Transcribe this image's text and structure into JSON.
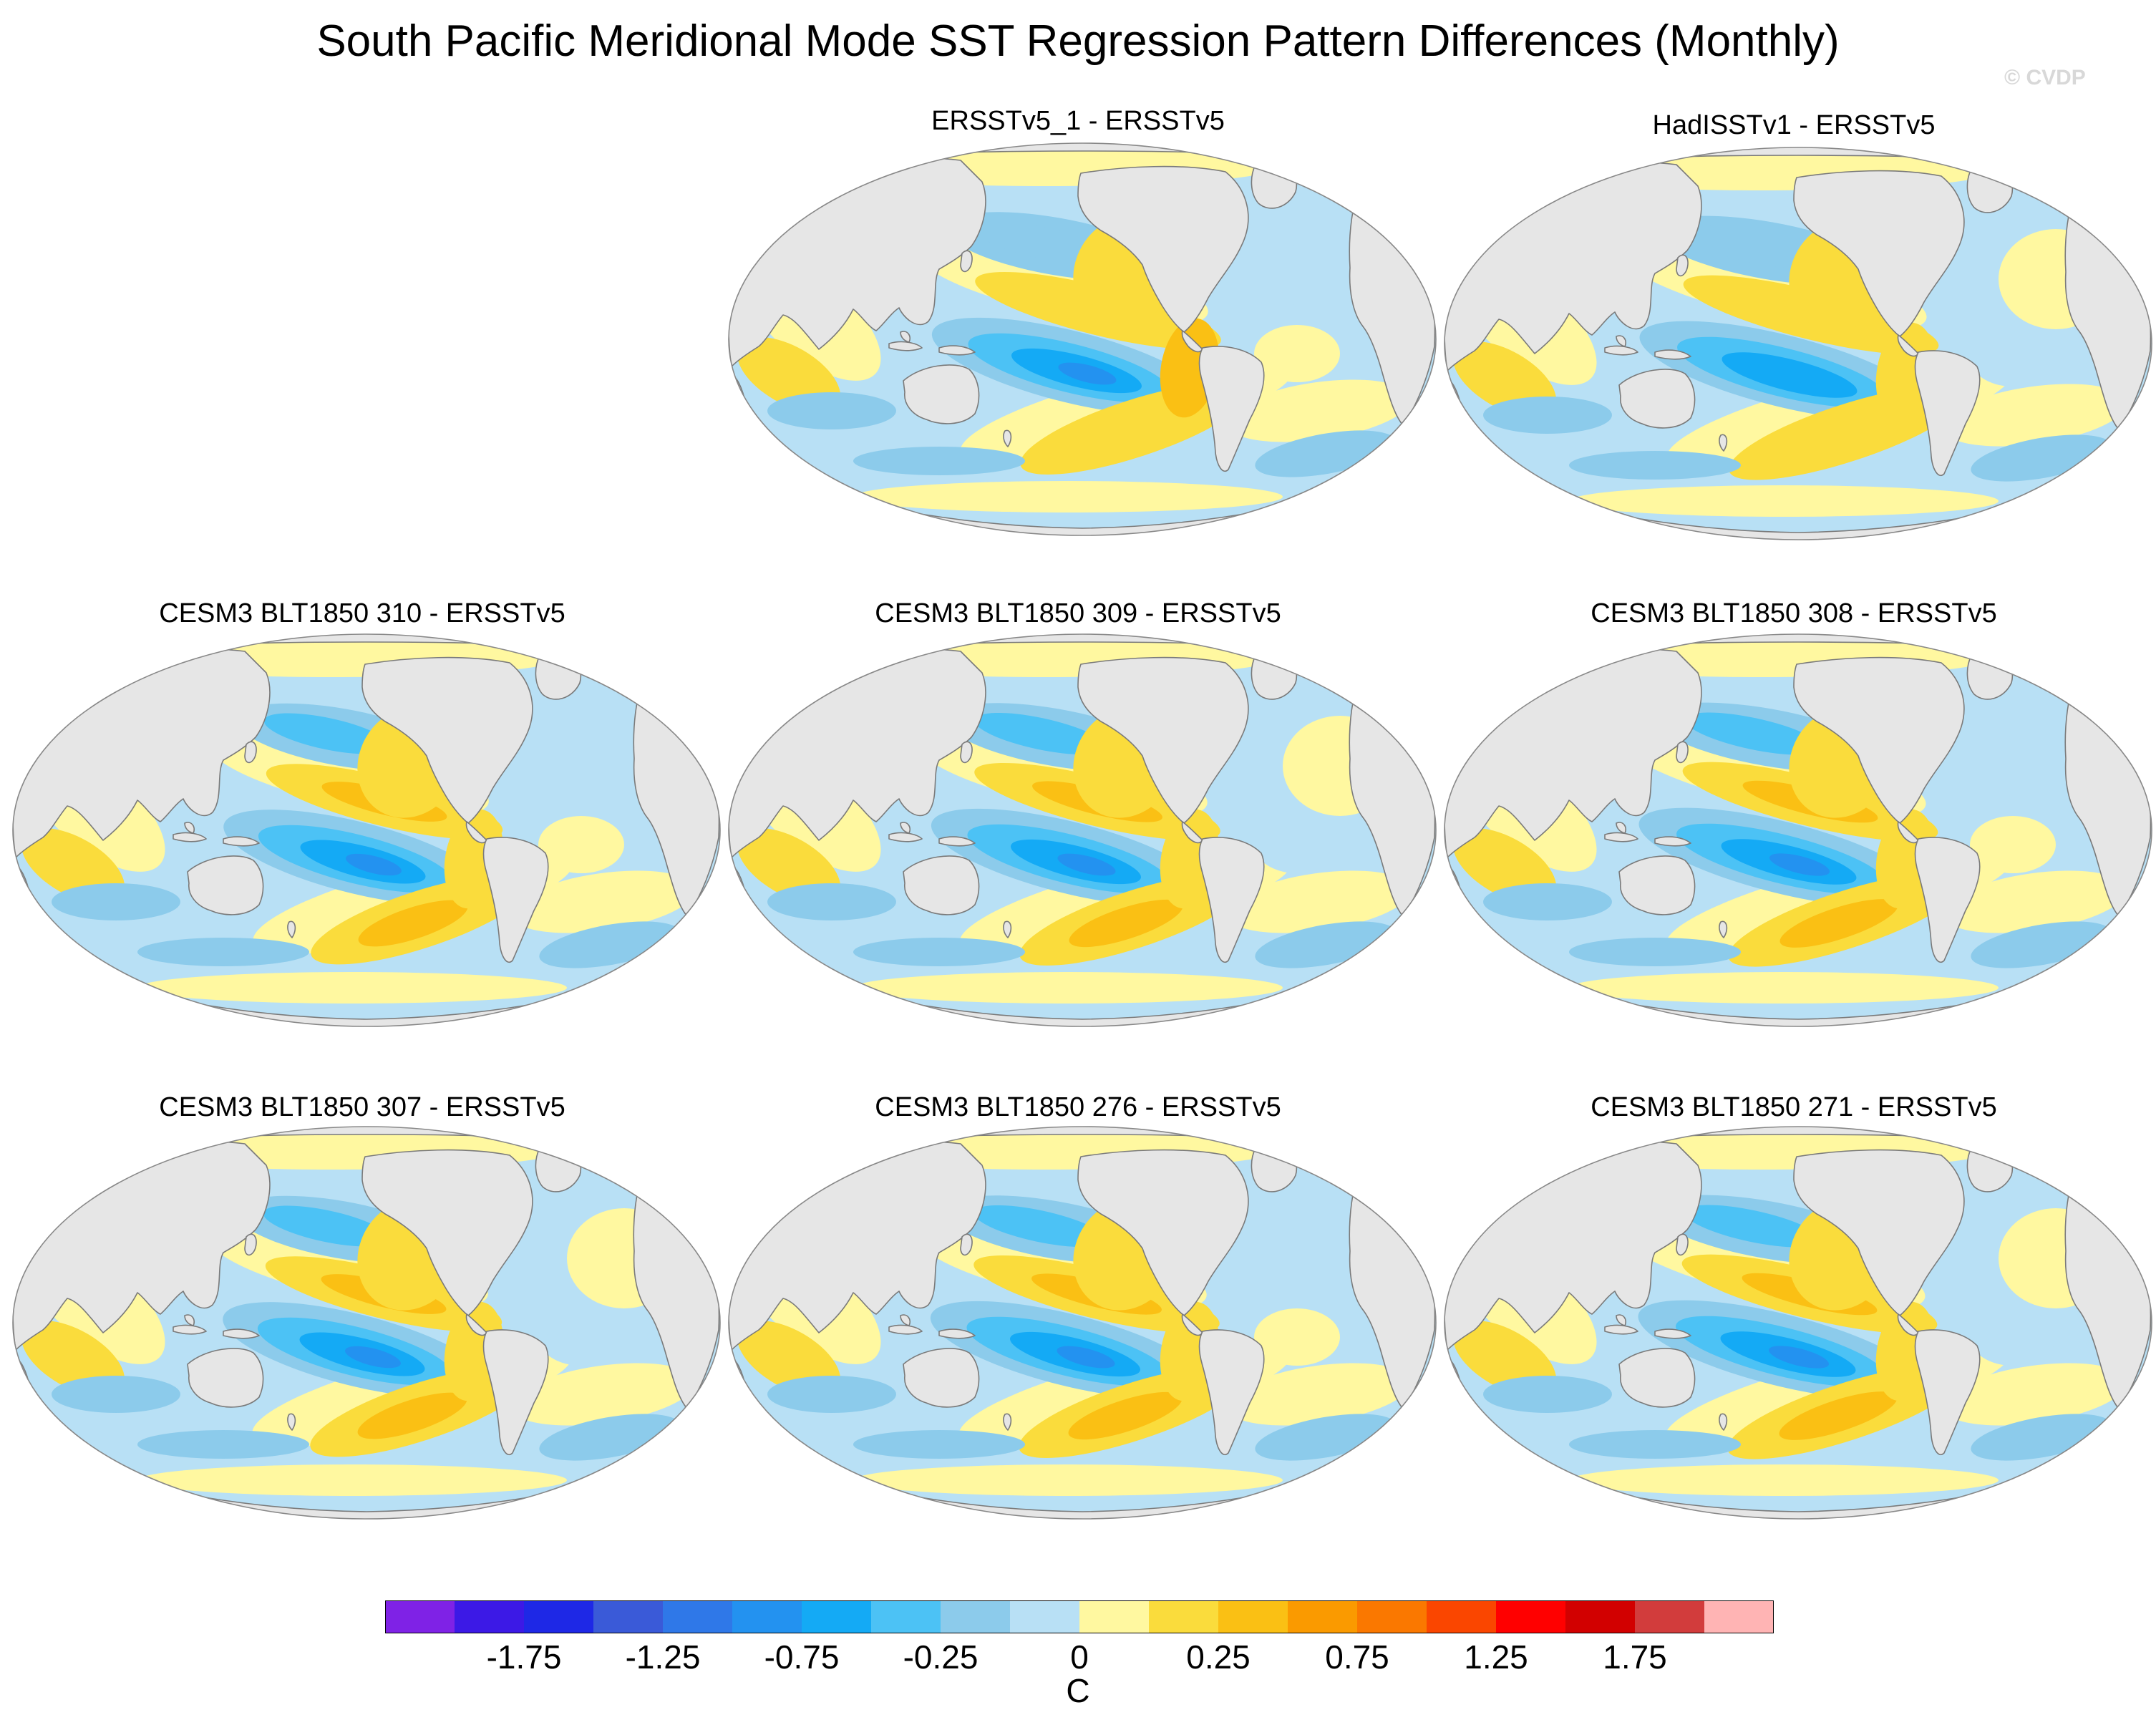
{
  "figure": {
    "title": "South Pacific Meridional Mode SST Regression Pattern Differences (Monthly)",
    "watermark": "© CVDP"
  },
  "panels": [
    {
      "title": "ERSSTv5_1 - ERSSTv5",
      "variant": 1
    },
    {
      "title": "HadISSTv1 - ERSSTv5",
      "variant": 2
    },
    {
      "title": "CESM3 BLT1850 310 - ERSSTv5",
      "variant": 3
    },
    {
      "title": "CESM3 BLT1850 309 - ERSSTv5",
      "variant": 4
    },
    {
      "title": "CESM3 BLT1850 308 - ERSSTv5",
      "variant": 5
    },
    {
      "title": "CESM3 BLT1850 307 - ERSSTv5",
      "variant": 6
    },
    {
      "title": "CESM3 BLT1850 276 - ERSSTv5",
      "variant": 7
    },
    {
      "title": "CESM3 BLT1850 271 - ERSSTv5",
      "variant": 8
    }
  ],
  "colorbar": {
    "units": "C",
    "colors": [
      "#7f22e6",
      "#3c19e6",
      "#1e28e6",
      "#3a5ad8",
      "#2f78e8",
      "#2392f0",
      "#14aaf5",
      "#4cc2f5",
      "#8ccbeb",
      "#b8e0f5",
      "#fff8a0",
      "#fadc3c",
      "#fac014",
      "#fa9a00",
      "#fa7800",
      "#fa4600",
      "#ff0000",
      "#d20000",
      "#d23c3c",
      "#ffb4b4"
    ],
    "labels": [
      "-1.75",
      "-1.25",
      "-0.75",
      "-0.25",
      "0",
      "0.25",
      "0.75",
      "1.25",
      "1.75"
    ]
  },
  "map_colors": {
    "land": "#e6e6e6",
    "coast": "#7a7a7a"
  }
}
